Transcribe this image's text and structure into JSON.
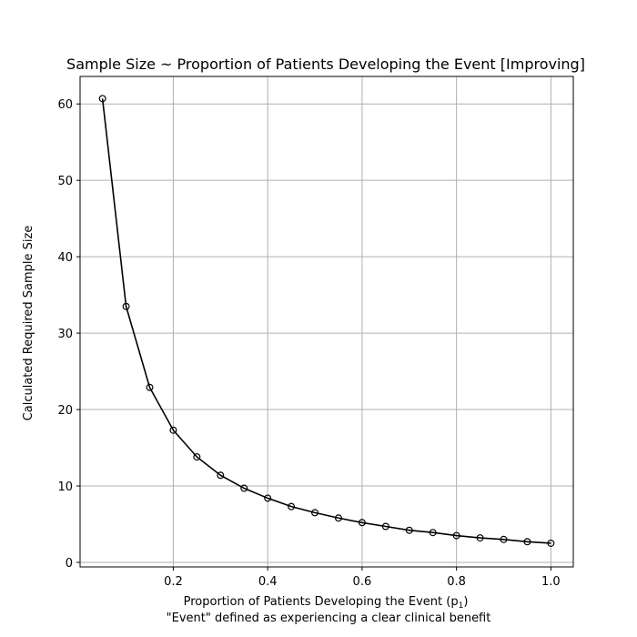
{
  "chart_data": {
    "type": "line",
    "title": "Sample Size ~ Proportion of Patients Developing the Event [Improving]",
    "xlabel": "Proportion of Patients Developing the Event (p",
    "xlabel_sub": "1",
    "xlabel_close": ")",
    "xlabel_note": "\"Event\" defined as experiencing a clear clinical benefit",
    "ylabel": "Calculated Required Sample Size",
    "xlim": [
      0.0025,
      1.0475
    ],
    "ylim": [
      -0.6,
      63.6
    ],
    "xticks": [
      0.2,
      0.4,
      0.6,
      0.8,
      1.0
    ],
    "xtick_labels": [
      "0.2",
      "0.4",
      "0.6",
      "0.8",
      "1.0"
    ],
    "yticks": [
      0,
      10,
      20,
      30,
      40,
      50,
      60
    ],
    "ytick_labels": [
      "0",
      "10",
      "20",
      "30",
      "40",
      "50",
      "60"
    ],
    "grid": true,
    "series": [
      {
        "color": "#000000",
        "marker": "open-circle",
        "x": [
          0.05,
          0.1,
          0.15,
          0.2,
          0.25,
          0.3,
          0.35,
          0.4,
          0.45,
          0.5,
          0.55,
          0.6,
          0.65,
          0.7,
          0.75,
          0.8,
          0.85,
          0.9,
          0.95,
          1.0
        ],
        "y": [
          60.7,
          33.5,
          22.9,
          17.3,
          13.8,
          11.4,
          9.7,
          8.4,
          7.3,
          6.5,
          5.8,
          5.2,
          4.7,
          4.2,
          3.9,
          3.5,
          3.2,
          3.0,
          2.7,
          2.5
        ]
      }
    ]
  }
}
